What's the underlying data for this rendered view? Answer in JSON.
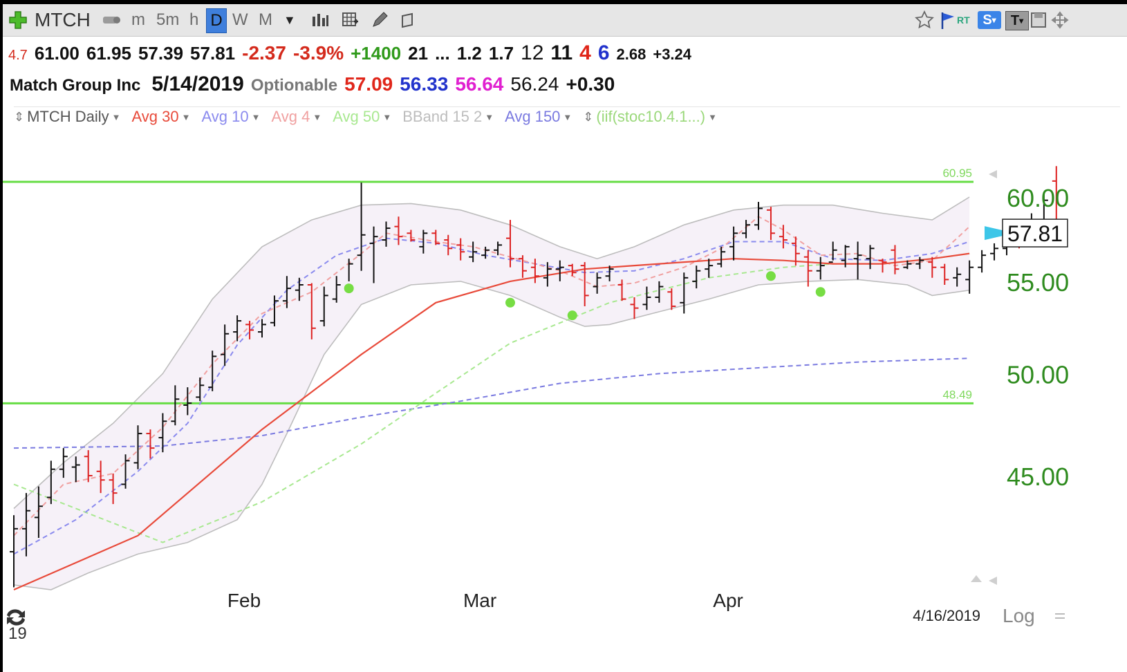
{
  "toolbar": {
    "symbol": "MTCH",
    "intervals": [
      "m",
      "5m",
      "h",
      "D",
      "W",
      "M"
    ],
    "active_interval": "D",
    "rt_label": "RT",
    "s_label": "S",
    "t_label": "T"
  },
  "quote_line1": {
    "val_a": "4.7",
    "open": "61.00",
    "high": "61.95",
    "low": "57.39",
    "close": "57.81",
    "change": "-2.37",
    "change_pct": "-3.9%",
    "volume_change": "+1400",
    "val_21": "21",
    "ellipsis": "...",
    "val_12a": "1.2",
    "val_17": "1.7",
    "val_12": "12",
    "val_11": "11",
    "val_4": "4",
    "val_6": "6",
    "val_268": "2.68",
    "val_324": "+3.24"
  },
  "quote_line2": {
    "company": "Match Group Inc",
    "date": "5/14/2019",
    "optionable": "Optionable",
    "avg30_val": "57.09",
    "avg10_val": "56.33",
    "avg4_val": "56.64",
    "val_5624": "56.24",
    "val_030": "+0.30"
  },
  "legend": {
    "chart_name": "MTCH Daily",
    "avg30": "Avg 30",
    "avg10": "Avg 10",
    "avg4": "Avg 4",
    "avg50": "Avg 50",
    "bband": "BBand 15 2",
    "avg150": "Avg 150",
    "indicator": "(iif(stoc10.4.1...)"
  },
  "colors": {
    "avg30": "#e84a3a",
    "avg10": "#8a8aee",
    "avg4": "#f0a0a0",
    "avg50": "#a8e890",
    "bband": "#bdbdbd",
    "avg150": "#7a7ae0",
    "hline": "#66dd44",
    "dots": "#77dd44",
    "up_bar": "#111111",
    "down_bar": "#dd2222",
    "axis_label": "#2e8b1e"
  },
  "axis": {
    "date_marker": "4/16/2019",
    "log_label": "Log",
    "corner_year": "19",
    "last_price": "57.81"
  },
  "chart_data": {
    "type": "ohlc",
    "y_ticks": [
      {
        "v": 45,
        "label": "45.00"
      },
      {
        "v": 50,
        "label": "50.00"
      },
      {
        "v": 55,
        "label": "55.00"
      },
      {
        "v": 60,
        "label": "60.00"
      }
    ],
    "x_ticks": [
      {
        "i": 19,
        "label": "Feb"
      },
      {
        "i": 38,
        "label": "Mar"
      },
      {
        "i": 58,
        "label": "Apr"
      }
    ],
    "hlines": [
      {
        "v": 60.95,
        "label": "60.95"
      },
      {
        "v": 48.49,
        "label": "48.49"
      }
    ],
    "dots": [
      {
        "i": 27,
        "v": 54.6
      },
      {
        "i": 40,
        "v": 53.8
      },
      {
        "i": 45,
        "v": 53.1
      },
      {
        "i": 61,
        "v": 55.3
      },
      {
        "i": 65,
        "v": 54.4
      }
    ],
    "bars": [
      {
        "o": 41.6,
        "h": 43.2,
        "l": 40.1,
        "c": 42.6
      },
      {
        "o": 42.6,
        "h": 44.2,
        "l": 41.4,
        "c": 43.4
      },
      {
        "o": 43.1,
        "h": 44.5,
        "l": 42.2,
        "c": 43.6
      },
      {
        "o": 44.0,
        "h": 45.7,
        "l": 43.7,
        "c": 45.3
      },
      {
        "o": 45.3,
        "h": 46.3,
        "l": 44.9,
        "c": 45.9
      },
      {
        "o": 45.4,
        "h": 45.9,
        "l": 44.7,
        "c": 45.5
      },
      {
        "o": 45.9,
        "h": 46.2,
        "l": 44.7,
        "c": 45.0
      },
      {
        "o": 45.2,
        "h": 45.7,
        "l": 44.2,
        "c": 44.8
      },
      {
        "o": 44.8,
        "h": 45.1,
        "l": 43.7,
        "c": 44.2
      },
      {
        "o": 44.6,
        "h": 46.0,
        "l": 44.4,
        "c": 45.7
      },
      {
        "o": 45.6,
        "h": 47.4,
        "l": 45.3,
        "c": 47.0
      },
      {
        "o": 47.0,
        "h": 47.2,
        "l": 45.8,
        "c": 46.3
      },
      {
        "o": 46.8,
        "h": 48.0,
        "l": 46.1,
        "c": 47.6
      },
      {
        "o": 47.6,
        "h": 49.4,
        "l": 47.4,
        "c": 48.7
      },
      {
        "o": 48.4,
        "h": 49.3,
        "l": 47.9,
        "c": 48.5
      },
      {
        "o": 48.8,
        "h": 49.8,
        "l": 48.6,
        "c": 49.4
      },
      {
        "o": 49.3,
        "h": 51.2,
        "l": 49.1,
        "c": 50.9
      },
      {
        "o": 51.0,
        "h": 52.6,
        "l": 50.4,
        "c": 52.1
      },
      {
        "o": 52.2,
        "h": 53.1,
        "l": 51.7,
        "c": 52.8
      },
      {
        "o": 52.6,
        "h": 52.8,
        "l": 51.8,
        "c": 52.3
      },
      {
        "o": 52.2,
        "h": 52.9,
        "l": 51.9,
        "c": 52.6
      },
      {
        "o": 52.7,
        "h": 54.2,
        "l": 52.5,
        "c": 53.9
      },
      {
        "o": 53.9,
        "h": 55.3,
        "l": 53.5,
        "c": 54.6
      },
      {
        "o": 54.5,
        "h": 55.2,
        "l": 53.9,
        "c": 54.8
      },
      {
        "o": 54.8,
        "h": 54.9,
        "l": 51.8,
        "c": 52.4
      },
      {
        "o": 52.8,
        "h": 54.7,
        "l": 52.5,
        "c": 54.2
      },
      {
        "o": 54.0,
        "h": 55.3,
        "l": 53.8,
        "c": 54.8
      },
      {
        "o": 54.6,
        "h": 56.3,
        "l": 55.0,
        "c": 56.0
      },
      {
        "o": 56.5,
        "h": 60.9,
        "l": 55.6,
        "c": 57.7
      },
      {
        "o": 57.2,
        "h": 58.2,
        "l": 54.9,
        "c": 57.6
      },
      {
        "o": 57.4,
        "h": 58.5,
        "l": 57.0,
        "c": 58.1
      },
      {
        "o": 58.2,
        "h": 58.8,
        "l": 57.1,
        "c": 57.6
      },
      {
        "o": 57.8,
        "h": 58.0,
        "l": 57.3,
        "c": 57.4
      },
      {
        "o": 57.0,
        "h": 58.0,
        "l": 56.6,
        "c": 57.8
      },
      {
        "o": 57.8,
        "h": 58.0,
        "l": 57.1,
        "c": 57.2
      },
      {
        "o": 57.4,
        "h": 57.7,
        "l": 56.5,
        "c": 56.9
      },
      {
        "o": 57.1,
        "h": 57.5,
        "l": 56.2,
        "c": 56.7
      },
      {
        "o": 56.4,
        "h": 57.3,
        "l": 56.1,
        "c": 56.7
      },
      {
        "o": 56.5,
        "h": 57.0,
        "l": 56.3,
        "c": 56.8
      },
      {
        "o": 56.8,
        "h": 57.3,
        "l": 56.5,
        "c": 57.1
      },
      {
        "o": 57.5,
        "h": 58.6,
        "l": 55.8,
        "c": 56.3
      },
      {
        "o": 56.3,
        "h": 56.5,
        "l": 55.2,
        "c": 55.6
      },
      {
        "o": 55.8,
        "h": 56.3,
        "l": 54.9,
        "c": 55.3
      },
      {
        "o": 55.2,
        "h": 56.1,
        "l": 54.7,
        "c": 55.7
      },
      {
        "o": 55.7,
        "h": 56.2,
        "l": 55.0,
        "c": 55.8
      },
      {
        "o": 55.9,
        "h": 56.0,
        "l": 55.3,
        "c": 55.5
      },
      {
        "o": 55.9,
        "h": 56.1,
        "l": 53.6,
        "c": 54.2
      },
      {
        "o": 54.7,
        "h": 55.5,
        "l": 54.3,
        "c": 55.2
      },
      {
        "o": 55.3,
        "h": 55.9,
        "l": 55.0,
        "c": 55.7
      },
      {
        "o": 54.8,
        "h": 55.1,
        "l": 53.9,
        "c": 54.0
      },
      {
        "o": 53.7,
        "h": 54.1,
        "l": 52.9,
        "c": 53.5
      },
      {
        "o": 53.7,
        "h": 54.7,
        "l": 53.4,
        "c": 54.1
      },
      {
        "o": 54.1,
        "h": 55.0,
        "l": 53.8,
        "c": 54.7
      },
      {
        "o": 54.4,
        "h": 54.6,
        "l": 53.4,
        "c": 53.6
      },
      {
        "o": 53.8,
        "h": 55.5,
        "l": 53.2,
        "c": 55.2
      },
      {
        "o": 55.0,
        "h": 55.9,
        "l": 54.6,
        "c": 55.6
      },
      {
        "o": 55.7,
        "h": 56.3,
        "l": 55.2,
        "c": 55.9
      },
      {
        "o": 56.0,
        "h": 57.0,
        "l": 55.8,
        "c": 56.7
      },
      {
        "o": 57.0,
        "h": 58.2,
        "l": 56.2,
        "c": 57.8
      },
      {
        "o": 57.8,
        "h": 58.6,
        "l": 57.5,
        "c": 58.3
      },
      {
        "o": 58.3,
        "h": 59.7,
        "l": 58.0,
        "c": 59.3
      },
      {
        "o": 59.2,
        "h": 59.4,
        "l": 57.4,
        "c": 57.8
      },
      {
        "o": 57.6,
        "h": 58.3,
        "l": 56.9,
        "c": 57.4
      },
      {
        "o": 57.2,
        "h": 57.6,
        "l": 55.9,
        "c": 56.6
      },
      {
        "o": 56.4,
        "h": 56.8,
        "l": 54.7,
        "c": 55.6
      },
      {
        "o": 55.6,
        "h": 56.4,
        "l": 55.1,
        "c": 55.9
      },
      {
        "o": 56.1,
        "h": 57.3,
        "l": 56.2,
        "c": 56.8
      },
      {
        "o": 56.2,
        "h": 57.1,
        "l": 55.8,
        "c": 57.0
      },
      {
        "o": 56.3,
        "h": 57.3,
        "l": 55.1,
        "c": 56.5
      },
      {
        "o": 56.3,
        "h": 57.1,
        "l": 55.7,
        "c": 56.9
      },
      {
        "o": 56.2,
        "h": 56.3,
        "l": 55.5,
        "c": 56.1
      },
      {
        "o": 56.8,
        "h": 57.1,
        "l": 55.4,
        "c": 55.7
      },
      {
        "o": 55.8,
        "h": 56.2,
        "l": 55.7,
        "c": 56.0
      },
      {
        "o": 56.0,
        "h": 56.4,
        "l": 55.7,
        "c": 56.2
      },
      {
        "o": 56.1,
        "h": 56.4,
        "l": 55.2,
        "c": 55.8
      },
      {
        "o": 55.8,
        "h": 56.0,
        "l": 54.8,
        "c": 55.1
      },
      {
        "o": 55.2,
        "h": 55.8,
        "l": 54.7,
        "c": 55.4
      },
      {
        "o": 55.1,
        "h": 56.2,
        "l": 54.3,
        "c": 55.8
      },
      {
        "o": 55.8,
        "h": 56.8,
        "l": 55.5,
        "c": 56.5
      },
      {
        "o": 56.6,
        "h": 57.2,
        "l": 56.2,
        "c": 56.9
      },
      {
        "o": 56.9,
        "h": 57.9,
        "l": 56.5,
        "c": 57.6
      },
      {
        "o": 57.6,
        "h": 58.1,
        "l": 56.9,
        "c": 57.1
      },
      {
        "o": 57.8,
        "h": 59.0,
        "l": 57.4,
        "c": 58.6
      },
      {
        "o": 58.6,
        "h": 60.3,
        "l": 58.1,
        "c": 59.8
      },
      {
        "o": 61.0,
        "h": 61.95,
        "l": 57.39,
        "c": 57.81
      }
    ],
    "avg30": [
      [
        0,
        40.0
      ],
      [
        10,
        42.3
      ],
      [
        20,
        47.2
      ],
      [
        28,
        51.0
      ],
      [
        34,
        53.8
      ],
      [
        40,
        55.0
      ],
      [
        46,
        55.7
      ],
      [
        52,
        56.0
      ],
      [
        58,
        56.3
      ],
      [
        62,
        56.2
      ],
      [
        66,
        56.0
      ],
      [
        70,
        56.0
      ],
      [
        74,
        56.3
      ],
      [
        77,
        56.6
      ]
    ],
    "avg10": [
      [
        0,
        41.5
      ],
      [
        5,
        43.0
      ],
      [
        10,
        45.2
      ],
      [
        14,
        47.5
      ],
      [
        18,
        51.5
      ],
      [
        22,
        54.5
      ],
      [
        26,
        56.5
      ],
      [
        30,
        57.5
      ],
      [
        34,
        57.2
      ],
      [
        38,
        56.5
      ],
      [
        42,
        56.0
      ],
      [
        46,
        55.5
      ],
      [
        50,
        55.6
      ],
      [
        54,
        56.3
      ],
      [
        58,
        57.3
      ],
      [
        62,
        57.3
      ],
      [
        66,
        56.3
      ],
      [
        70,
        56.2
      ],
      [
        74,
        56.6
      ],
      [
        77,
        57.3
      ]
    ],
    "avg4": [
      [
        0,
        42.3
      ],
      [
        4,
        44.6
      ],
      [
        8,
        45.1
      ],
      [
        12,
        47.3
      ],
      [
        16,
        50.5
      ],
      [
        20,
        53.2
      ],
      [
        24,
        54.4
      ],
      [
        28,
        56.6
      ],
      [
        30,
        57.8
      ],
      [
        34,
        57.3
      ],
      [
        37,
        57.0
      ],
      [
        40,
        56.4
      ],
      [
        44,
        55.6
      ],
      [
        47,
        54.7
      ],
      [
        50,
        54.9
      ],
      [
        54,
        55.8
      ],
      [
        57,
        56.9
      ],
      [
        60,
        58.8
      ],
      [
        62,
        58.0
      ],
      [
        65,
        56.5
      ],
      [
        68,
        56.6
      ],
      [
        71,
        55.9
      ],
      [
        74,
        56.2
      ],
      [
        76,
        57.5
      ],
      [
        77,
        58.2
      ]
    ],
    "avg50": [
      [
        0,
        44.6
      ],
      [
        12,
        42.0
      ],
      [
        20,
        43.8
      ],
      [
        28,
        46.5
      ],
      [
        34,
        49.0
      ],
      [
        40,
        51.6
      ],
      [
        48,
        53.8
      ],
      [
        56,
        55.2
      ],
      [
        62,
        55.8
      ],
      [
        66,
        56.0
      ],
      [
        70,
        56.0
      ],
      [
        74,
        56.3
      ],
      [
        77,
        56.6
      ]
    ],
    "avg150": [
      [
        0,
        46.3
      ],
      [
        12,
        46.4
      ],
      [
        20,
        46.9
      ],
      [
        28,
        47.8
      ],
      [
        36,
        48.6
      ],
      [
        44,
        49.5
      ],
      [
        52,
        50.0
      ],
      [
        60,
        50.3
      ],
      [
        68,
        50.6
      ],
      [
        77,
        50.8
      ]
    ],
    "bb_upper": [
      [
        0,
        43.5
      ],
      [
        4,
        45.6
      ],
      [
        8,
        47.5
      ],
      [
        12,
        50.0
      ],
      [
        16,
        54.0
      ],
      [
        20,
        57.0
      ],
      [
        24,
        58.6
      ],
      [
        28,
        59.5
      ],
      [
        32,
        59.6
      ],
      [
        36,
        59.2
      ],
      [
        40,
        58.3
      ],
      [
        44,
        57.0
      ],
      [
        47,
        56.3
      ],
      [
        50,
        57.0
      ],
      [
        54,
        58.3
      ],
      [
        58,
        59.2
      ],
      [
        62,
        59.5
      ],
      [
        66,
        59.5
      ],
      [
        70,
        59.0
      ],
      [
        74,
        58.6
      ],
      [
        77,
        60.0
      ]
    ],
    "bb_lower": [
      [
        0,
        40.2
      ],
      [
        3,
        40.0
      ],
      [
        6,
        40.7
      ],
      [
        10,
        41.5
      ],
      [
        14,
        42.0
      ],
      [
        18,
        43.0
      ],
      [
        20,
        44.6
      ],
      [
        22,
        47.0
      ],
      [
        25,
        51.0
      ],
      [
        28,
        53.7
      ],
      [
        32,
        54.8
      ],
      [
        36,
        55.0
      ],
      [
        40,
        54.2
      ],
      [
        44,
        53.0
      ],
      [
        46,
        52.5
      ],
      [
        48,
        52.6
      ],
      [
        52,
        53.3
      ],
      [
        56,
        54.0
      ],
      [
        60,
        54.8
      ],
      [
        64,
        55.0
      ],
      [
        68,
        55.1
      ],
      [
        72,
        54.8
      ],
      [
        74,
        54.2
      ],
      [
        77,
        54.5
      ]
    ]
  }
}
